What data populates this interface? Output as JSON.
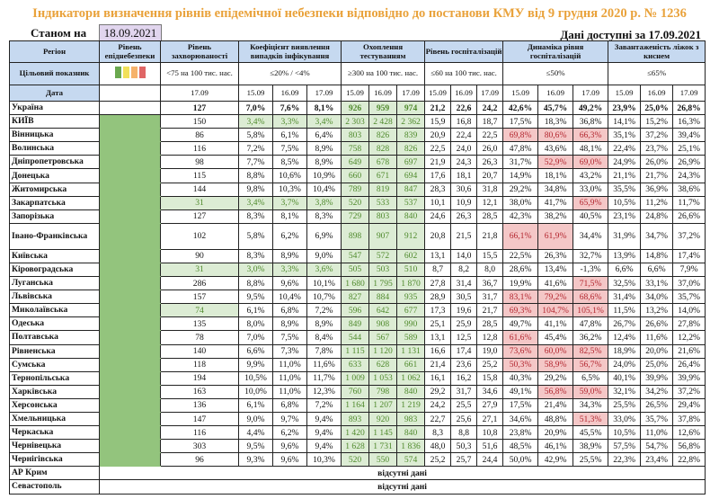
{
  "title": "Індикатори визначення рівнів епідемічної небезпеки відповідно до постанови КМУ від 9 грудня 2020 р. № 1236",
  "as_of_label": "Станом на",
  "as_of_date": "18.09.2021",
  "data_available": "Дані доступні за 17.09.2021",
  "headers": {
    "region": "Регіон",
    "level": "Рівень епіднебезпеки",
    "incidence": "Рівень захворюваності",
    "detection": "Коефіцієнт виявлення випадків інфікування",
    "testing": "Охоплення тестуванням",
    "hospital": "Рівень госпіталізацій",
    "dynamics": "Динаміка рівня госпіталізацій",
    "beds": "Завантаженість ліжок з киснем"
  },
  "targets": {
    "label": "Цільовий показник",
    "incidence": "<75 на 100 тис. нас.",
    "detection": "≤20% / <4%",
    "testing": "≥300 на 100 тис. нас.",
    "hospital": "≤60 на 100 тис. нас.",
    "dynamics": "≤50%",
    "beds": "≤65%"
  },
  "level_colors": [
    "#6aa84f",
    "#f1e05a",
    "#f6b26b",
    "#e06666"
  ],
  "date_label": "Дата",
  "dates": {
    "incidence": "17.09",
    "triple": [
      "15.09",
      "16.09",
      "17.09"
    ]
  },
  "missing_text": "відсутні дані",
  "rows": [
    {
      "name": "Україна",
      "inc": "127",
      "det": [
        "7,0%",
        "7,6%",
        "8,1%"
      ],
      "test": [
        "926",
        "959",
        "974"
      ],
      "hosp": [
        "21,2",
        "22,6",
        "24,2"
      ],
      "dyn": [
        "42,6%",
        "45,7%",
        "49,2%"
      ],
      "beds": [
        "23,9%",
        "25,0%",
        "26,8%"
      ],
      "green": [],
      "red": []
    },
    {
      "name": "КИЇВ",
      "inc": "150",
      "det": [
        "3,4%",
        "3,3%",
        "3,4%"
      ],
      "test": [
        "2 303",
        "2 428",
        "2 362"
      ],
      "hosp": [
        "15,9",
        "16,8",
        "18,7"
      ],
      "dyn": [
        "17,5%",
        "18,3%",
        "36,8%"
      ],
      "beds": [
        "14,1%",
        "15,2%",
        "16,3%"
      ],
      "green": [
        "d"
      ],
      "red": []
    },
    {
      "name": "Вінницька",
      "inc": "86",
      "det": [
        "5,8%",
        "6,1%",
        "6,4%"
      ],
      "test": [
        "803",
        "826",
        "839"
      ],
      "hosp": [
        "20,9",
        "22,4",
        "22,5"
      ],
      "dyn": [
        "69,8%",
        "80,6%",
        "66,3%"
      ],
      "beds": [
        "35,1%",
        "37,2%",
        "39,4%"
      ],
      "green": [],
      "red": [
        0,
        1,
        2
      ]
    },
    {
      "name": "Волинська",
      "inc": "116",
      "det": [
        "7,2%",
        "7,5%",
        "8,9%"
      ],
      "test": [
        "758",
        "828",
        "826"
      ],
      "hosp": [
        "22,5",
        "24,0",
        "26,0"
      ],
      "dyn": [
        "47,8%",
        "43,6%",
        "48,1%"
      ],
      "beds": [
        "22,4%",
        "23,7%",
        "25,1%"
      ],
      "green": [],
      "red": []
    },
    {
      "name": "Дніпропетровська",
      "inc": "98",
      "det": [
        "7,7%",
        "8,5%",
        "8,9%"
      ],
      "test": [
        "649",
        "678",
        "697"
      ],
      "hosp": [
        "21,9",
        "24,3",
        "26,3"
      ],
      "dyn": [
        "31,7%",
        "52,9%",
        "69,0%"
      ],
      "beds": [
        "24,9%",
        "26,0%",
        "26,9%"
      ],
      "green": [],
      "red": [
        1,
        2
      ]
    },
    {
      "name": "Донецька",
      "inc": "115",
      "det": [
        "8,8%",
        "10,6%",
        "10,9%"
      ],
      "test": [
        "660",
        "671",
        "694"
      ],
      "hosp": [
        "17,6",
        "18,1",
        "20,7"
      ],
      "dyn": [
        "14,9%",
        "18,1%",
        "43,2%"
      ],
      "beds": [
        "21,1%",
        "21,7%",
        "24,3%"
      ],
      "green": [],
      "red": []
    },
    {
      "name": "Житомирська",
      "inc": "144",
      "det": [
        "9,8%",
        "10,3%",
        "10,4%"
      ],
      "test": [
        "789",
        "819",
        "847"
      ],
      "hosp": [
        "28,3",
        "30,6",
        "31,8"
      ],
      "dyn": [
        "29,2%",
        "34,8%",
        "33,0%"
      ],
      "beds": [
        "35,5%",
        "36,9%",
        "38,6%"
      ],
      "green": [],
      "red": []
    },
    {
      "name": "Закарпатська",
      "inc": "31",
      "det": [
        "3,4%",
        "3,7%",
        "3,8%"
      ],
      "test": [
        "520",
        "533",
        "537"
      ],
      "hosp": [
        "10,1",
        "10,9",
        "12,1"
      ],
      "dyn": [
        "38,0%",
        "41,7%",
        "65,9%"
      ],
      "beds": [
        "10,5%",
        "11,2%",
        "11,7%"
      ],
      "green": [
        "i",
        "d"
      ],
      "red": [
        2
      ]
    },
    {
      "name": "Запорізька",
      "inc": "127",
      "det": [
        "8,3%",
        "8,1%",
        "8,3%"
      ],
      "test": [
        "729",
        "803",
        "840"
      ],
      "hosp": [
        "24,6",
        "26,3",
        "28,5"
      ],
      "dyn": [
        "42,3%",
        "38,2%",
        "40,5%"
      ],
      "beds": [
        "23,1%",
        "24,8%",
        "26,6%"
      ],
      "green": [],
      "red": []
    },
    {
      "name": "Івано-Франківська",
      "inc": "102",
      "det": [
        "5,8%",
        "6,2%",
        "6,9%"
      ],
      "test": [
        "898",
        "907",
        "912"
      ],
      "hosp": [
        "20,8",
        "21,5",
        "21,8"
      ],
      "dyn": [
        "66,1%",
        "61,9%",
        "34,4%"
      ],
      "beds": [
        "31,9%",
        "34,7%",
        "37,2%"
      ],
      "green": [],
      "red": [
        0,
        1
      ],
      "tall": true
    },
    {
      "name": "Київська",
      "inc": "90",
      "det": [
        "8,3%",
        "8,9%",
        "9,0%"
      ],
      "test": [
        "547",
        "572",
        "602"
      ],
      "hosp": [
        "13,1",
        "14,0",
        "15,5"
      ],
      "dyn": [
        "22,5%",
        "26,3%",
        "32,7%"
      ],
      "beds": [
        "13,9%",
        "14,8%",
        "17,4%"
      ],
      "green": [],
      "red": []
    },
    {
      "name": "Кіровоградська",
      "inc": "31",
      "det": [
        "3,0%",
        "3,3%",
        "3,6%"
      ],
      "test": [
        "505",
        "503",
        "510"
      ],
      "hosp": [
        "8,7",
        "8,2",
        "8,0"
      ],
      "dyn": [
        "28,6%",
        "13,4%",
        "-1,3%"
      ],
      "beds": [
        "6,6%",
        "6,6%",
        "7,9%"
      ],
      "green": [
        "i",
        "d"
      ],
      "red": []
    },
    {
      "name": "Луганська",
      "inc": "286",
      "det": [
        "8,8%",
        "9,6%",
        "10,1%"
      ],
      "test": [
        "1 680",
        "1 795",
        "1 870"
      ],
      "hosp": [
        "27,8",
        "31,4",
        "36,7"
      ],
      "dyn": [
        "19,9%",
        "41,6%",
        "71,5%"
      ],
      "beds": [
        "32,5%",
        "33,1%",
        "37,0%"
      ],
      "green": [],
      "red": [
        2
      ]
    },
    {
      "name": "Львівська",
      "inc": "157",
      "det": [
        "9,5%",
        "10,4%",
        "10,7%"
      ],
      "test": [
        "827",
        "884",
        "935"
      ],
      "hosp": [
        "28,9",
        "30,5",
        "31,7"
      ],
      "dyn": [
        "83,1%",
        "79,2%",
        "68,6%"
      ],
      "beds": [
        "31,4%",
        "34,0%",
        "35,7%"
      ],
      "green": [],
      "red": [
        0,
        1,
        2
      ]
    },
    {
      "name": "Миколаївська",
      "inc": "74",
      "det": [
        "6,1%",
        "6,8%",
        "7,2%"
      ],
      "test": [
        "596",
        "642",
        "677"
      ],
      "hosp": [
        "17,3",
        "19,6",
        "21,7"
      ],
      "dyn": [
        "69,3%",
        "104,7%",
        "105,1%"
      ],
      "beds": [
        "11,5%",
        "13,2%",
        "14,0%"
      ],
      "green": [
        "i"
      ],
      "red": [
        0,
        1,
        2
      ]
    },
    {
      "name": "Одеська",
      "inc": "135",
      "det": [
        "8,0%",
        "8,9%",
        "8,9%"
      ],
      "test": [
        "849",
        "908",
        "990"
      ],
      "hosp": [
        "25,1",
        "25,9",
        "28,5"
      ],
      "dyn": [
        "49,7%",
        "41,1%",
        "47,8%"
      ],
      "beds": [
        "26,7%",
        "26,6%",
        "27,8%"
      ],
      "green": [],
      "red": []
    },
    {
      "name": "Полтавська",
      "inc": "78",
      "det": [
        "7,0%",
        "7,5%",
        "8,4%"
      ],
      "test": [
        "544",
        "567",
        "589"
      ],
      "hosp": [
        "13,1",
        "12,5",
        "12,8"
      ],
      "dyn": [
        "61,6%",
        "45,4%",
        "36,2%"
      ],
      "beds": [
        "12,4%",
        "11,6%",
        "12,2%"
      ],
      "green": [],
      "red": [
        0
      ]
    },
    {
      "name": "Рівненська",
      "inc": "140",
      "det": [
        "6,6%",
        "7,3%",
        "7,8%"
      ],
      "test": [
        "1 115",
        "1 120",
        "1 131"
      ],
      "hosp": [
        "16,6",
        "17,4",
        "19,0"
      ],
      "dyn": [
        "73,6%",
        "60,0%",
        "82,5%"
      ],
      "beds": [
        "18,9%",
        "20,0%",
        "21,6%"
      ],
      "green": [],
      "red": [
        0,
        1,
        2
      ]
    },
    {
      "name": "Сумська",
      "inc": "118",
      "det": [
        "9,9%",
        "11,0%",
        "11,6%"
      ],
      "test": [
        "633",
        "628",
        "661"
      ],
      "hosp": [
        "21,4",
        "23,6",
        "25,2"
      ],
      "dyn": [
        "50,3%",
        "58,9%",
        "56,7%"
      ],
      "beds": [
        "24,0%",
        "25,0%",
        "26,4%"
      ],
      "green": [],
      "red": [
        0,
        1,
        2
      ]
    },
    {
      "name": "Тернопільська",
      "inc": "194",
      "det": [
        "10,5%",
        "11,0%",
        "11,7%"
      ],
      "test": [
        "1 009",
        "1 053",
        "1 062"
      ],
      "hosp": [
        "16,1",
        "16,2",
        "15,8"
      ],
      "dyn": [
        "40,3%",
        "29,2%",
        "6,5%"
      ],
      "beds": [
        "40,1%",
        "39,9%",
        "39,9%"
      ],
      "green": [],
      "red": []
    },
    {
      "name": "Харківська",
      "inc": "163",
      "det": [
        "10,0%",
        "11,0%",
        "12,3%"
      ],
      "test": [
        "760",
        "798",
        "840"
      ],
      "hosp": [
        "29,2",
        "31,7",
        "34,6"
      ],
      "dyn": [
        "49,1%",
        "56,8%",
        "59,0%"
      ],
      "beds": [
        "32,1%",
        "34,2%",
        "37,2%"
      ],
      "green": [],
      "red": [
        1,
        2
      ]
    },
    {
      "name": "Херсонська",
      "inc": "136",
      "det": [
        "6,1%",
        "6,8%",
        "7,2%"
      ],
      "test": [
        "1 164",
        "1 207",
        "1 219"
      ],
      "hosp": [
        "24,2",
        "25,5",
        "27,9"
      ],
      "dyn": [
        "17,5%",
        "21,4%",
        "34,3%"
      ],
      "beds": [
        "25,5%",
        "26,5%",
        "29,4%"
      ],
      "green": [],
      "red": []
    },
    {
      "name": "Хмельницька",
      "inc": "147",
      "det": [
        "9,0%",
        "9,7%",
        "9,4%"
      ],
      "test": [
        "893",
        "920",
        "983"
      ],
      "hosp": [
        "22,7",
        "25,6",
        "27,1"
      ],
      "dyn": [
        "34,6%",
        "48,8%",
        "51,3%"
      ],
      "beds": [
        "33,0%",
        "35,7%",
        "37,8%"
      ],
      "green": [],
      "red": [
        2
      ]
    },
    {
      "name": "Черкаська",
      "inc": "116",
      "det": [
        "4,4%",
        "6,2%",
        "9,4%"
      ],
      "test": [
        "1 420",
        "1 145",
        "840"
      ],
      "hosp": [
        "8,3",
        "8,8",
        "10,8"
      ],
      "dyn": [
        "23,8%",
        "20,9%",
        "45,5%"
      ],
      "beds": [
        "10,5%",
        "11,0%",
        "12,6%"
      ],
      "green": [],
      "red": []
    },
    {
      "name": "Чернівецька",
      "inc": "303",
      "det": [
        "9,5%",
        "9,6%",
        "9,4%"
      ],
      "test": [
        "1 628",
        "1 731",
        "1 836"
      ],
      "hosp": [
        "48,0",
        "50,3",
        "51,6"
      ],
      "dyn": [
        "48,5%",
        "46,1%",
        "38,9%"
      ],
      "beds": [
        "57,5%",
        "54,7%",
        "56,8%"
      ],
      "green": [],
      "red": []
    },
    {
      "name": "Чернігівська",
      "inc": "96",
      "det": [
        "9,3%",
        "9,6%",
        "10,3%"
      ],
      "test": [
        "520",
        "550",
        "574"
      ],
      "hosp": [
        "25,2",
        "25,7",
        "24,4"
      ],
      "dyn": [
        "50,0%",
        "42,9%",
        "25,5%"
      ],
      "beds": [
        "22,3%",
        "23,4%",
        "22,8%"
      ],
      "green": [],
      "red": []
    }
  ],
  "missing_rows": [
    "АР Крим",
    "Севастополь"
  ]
}
